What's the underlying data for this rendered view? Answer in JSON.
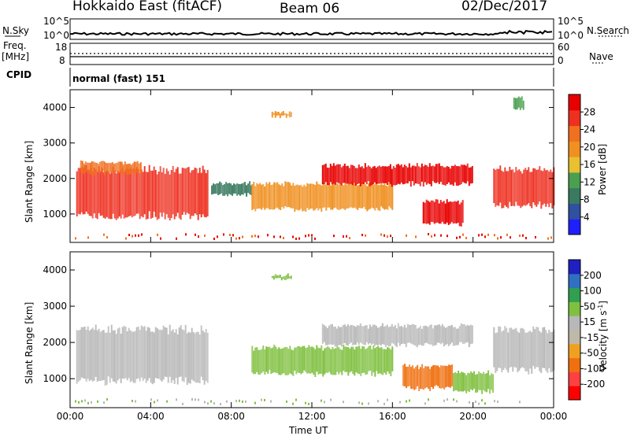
{
  "header": {
    "station": "Hokkaido East (fitACF)",
    "beam": "Beam 06",
    "date": "02/Dec/2017"
  },
  "left_labels": {
    "nsky": "N.Sky",
    "freq": "Freq.",
    "freq_unit": "[MHz]",
    "cpid": "CPID"
  },
  "right_labels": {
    "nsearch": "N.Search",
    "nave": "Nave"
  },
  "noise_ticks": {
    "left": [
      "10^5",
      "10^0"
    ],
    "right": [
      "10^5",
      "10^0"
    ]
  },
  "freq_ticks": {
    "left": [
      "18",
      "8"
    ],
    "right": [
      "60",
      "0"
    ]
  },
  "cpid_text": "normal (fast) 151",
  "colors": {
    "power_scale": [
      "#2020ff",
      "#3050a0",
      "#3a7a60",
      "#4aa050",
      "#e8c030",
      "#f09020",
      "#f07020",
      "#ee3020",
      "#e80000"
    ],
    "velocity_scale": [
      "#2020c0",
      "#3070c0",
      "#30a050",
      "#80c040",
      "#b8b8b8",
      "#c0b8a8",
      "#f0a020",
      "#f07010",
      "#ff4040",
      "#ff0000"
    ]
  },
  "chart_data": [
    {
      "type": "heatmap",
      "panel": "power",
      "ylabel": "Slant Range [km]",
      "y_ticks": [
        1000,
        2000,
        3000,
        4000
      ],
      "ylim": [
        200,
        4500
      ],
      "x_ticks": [
        "00:00",
        "04:00",
        "08:00",
        "12:00",
        "16:00",
        "20:00",
        "00:00"
      ],
      "xlim_hours": [
        0,
        24
      ],
      "colorbar": {
        "label": "Power [dB]",
        "ticks": [
          "28",
          "24",
          "20",
          "16",
          "12",
          "8",
          "4"
        ],
        "range": [
          0,
          32
        ]
      },
      "echo_regions": [
        {
          "t_start": 0.3,
          "t_end": 6.8,
          "range_low_km": 900,
          "range_high_km": 2300,
          "power_db": 26
        },
        {
          "t_start": 0.5,
          "t_end": 3.5,
          "range_low_km": 2100,
          "range_high_km": 2500,
          "power_db": 22
        },
        {
          "t_start": 7.0,
          "t_end": 9.0,
          "range_low_km": 1500,
          "range_high_km": 1900,
          "power_db": 10
        },
        {
          "t_start": 9.0,
          "t_end": 16.0,
          "range_low_km": 1100,
          "range_high_km": 1900,
          "power_db": 18
        },
        {
          "t_start": 12.5,
          "t_end": 20.0,
          "range_low_km": 1800,
          "range_high_km": 2400,
          "power_db": 29
        },
        {
          "t_start": 17.5,
          "t_end": 19.5,
          "range_low_km": 700,
          "range_high_km": 1400,
          "power_db": 30
        },
        {
          "t_start": 21.0,
          "t_end": 24.0,
          "range_low_km": 1200,
          "range_high_km": 2300,
          "power_db": 26
        },
        {
          "t_start": 10.0,
          "t_end": 11.0,
          "range_low_km": 3700,
          "range_high_km": 3900,
          "power_db": 18
        },
        {
          "t_start": 22.0,
          "t_end": 22.5,
          "range_low_km": 3900,
          "range_high_km": 4300,
          "power_db": 14
        }
      ]
    },
    {
      "type": "heatmap",
      "panel": "velocity",
      "ylabel": "Slant Range [km]",
      "y_ticks": [
        1000,
        2000,
        3000,
        4000
      ],
      "ylim": [
        200,
        4500
      ],
      "x_ticks": [
        "00:00",
        "04:00",
        "08:00",
        "12:00",
        "16:00",
        "20:00",
        "00:00"
      ],
      "xlim_hours": [
        0,
        24
      ],
      "xlabel": "Time UT",
      "colorbar": {
        "label": "Velocity [m s",
        "label_sup": "-1",
        "label_end": "]",
        "ticks": [
          "200",
          "100",
          "50",
          "15",
          "-15",
          "-50",
          "-100",
          "-200"
        ]
      },
      "echo_regions": [
        {
          "t_start": 0.3,
          "t_end": 6.8,
          "range_low_km": 900,
          "range_high_km": 2400,
          "velocity_ms": 0
        },
        {
          "t_start": 9.0,
          "t_end": 16.0,
          "range_low_km": 1100,
          "range_high_km": 1900,
          "velocity_ms": 40
        },
        {
          "t_start": 12.5,
          "t_end": 20.0,
          "range_low_km": 1900,
          "range_high_km": 2500,
          "velocity_ms": 0
        },
        {
          "t_start": 16.5,
          "t_end": 19.0,
          "range_low_km": 700,
          "range_high_km": 1400,
          "velocity_ms": -80
        },
        {
          "t_start": 19.0,
          "t_end": 21.0,
          "range_low_km": 600,
          "range_high_km": 1200,
          "velocity_ms": 40
        },
        {
          "t_start": 21.0,
          "t_end": 24.0,
          "range_low_km": 1200,
          "range_high_km": 2400,
          "velocity_ms": 0
        },
        {
          "t_start": 10.0,
          "t_end": 11.0,
          "range_low_km": 3700,
          "range_high_km": 3900,
          "velocity_ms": 40
        }
      ]
    }
  ]
}
